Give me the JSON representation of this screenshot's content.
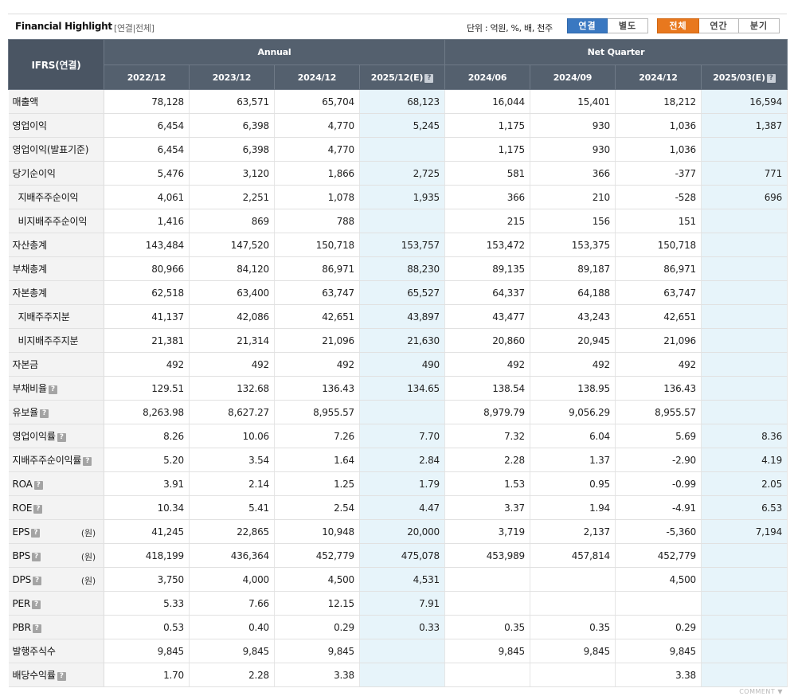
{
  "header": {
    "title": "Financial Highlight",
    "subtitle": "[연결|전체]",
    "unit": "단위 : 억원, %, 배, 천주",
    "scope_buttons": [
      "연결",
      "별도"
    ],
    "period_buttons": [
      "전체",
      "연간",
      "분기"
    ],
    "colors": {
      "active_blue": "#3a78c1",
      "active_orange": "#e8781e"
    }
  },
  "table": {
    "corner": "IFRS(연결)",
    "group_annual": "Annual",
    "group_quarter": "Net Quarter",
    "help_icon": "?",
    "columns": [
      "2022/12",
      "2023/12",
      "2024/12",
      "2025/12(E)",
      "2024/06",
      "2024/09",
      "2024/12",
      "2025/03(E)"
    ],
    "rows": [
      {
        "label": "매출액",
        "values": [
          "78,128",
          "63,571",
          "65,704",
          "68,123",
          "16,044",
          "15,401",
          "18,212",
          "16,594"
        ]
      },
      {
        "label": "영업이익",
        "values": [
          "6,454",
          "6,398",
          "4,770",
          "5,245",
          "1,175",
          "930",
          "1,036",
          "1,387"
        ]
      },
      {
        "label": "영업이익(발표기준)",
        "values": [
          "6,454",
          "6,398",
          "4,770",
          "",
          "1,175",
          "930",
          "1,036",
          ""
        ]
      },
      {
        "label": "당기순이익",
        "values": [
          "5,476",
          "3,120",
          "1,866",
          "2,725",
          "581",
          "366",
          "-377",
          "771"
        ]
      },
      {
        "label": "지배주주순이익",
        "sub": true,
        "values": [
          "4,061",
          "2,251",
          "1,078",
          "1,935",
          "366",
          "210",
          "-528",
          "696"
        ]
      },
      {
        "label": "비지배주주순이익",
        "sub": true,
        "values": [
          "1,416",
          "869",
          "788",
          "",
          "215",
          "156",
          "151",
          ""
        ]
      },
      {
        "label": "자산총계",
        "values": [
          "143,484",
          "147,520",
          "150,718",
          "153,757",
          "153,472",
          "153,375",
          "150,718",
          ""
        ]
      },
      {
        "label": "부채총계",
        "values": [
          "80,966",
          "84,120",
          "86,971",
          "88,230",
          "89,135",
          "89,187",
          "86,971",
          ""
        ]
      },
      {
        "label": "자본총계",
        "values": [
          "62,518",
          "63,400",
          "63,747",
          "65,527",
          "64,337",
          "64,188",
          "63,747",
          ""
        ]
      },
      {
        "label": "지배주주지분",
        "sub": true,
        "values": [
          "41,137",
          "42,086",
          "42,651",
          "43,897",
          "43,477",
          "43,243",
          "42,651",
          ""
        ]
      },
      {
        "label": "비지배주주지분",
        "sub": true,
        "values": [
          "21,381",
          "21,314",
          "21,096",
          "21,630",
          "20,860",
          "20,945",
          "21,096",
          ""
        ]
      },
      {
        "label": "자본금",
        "values": [
          "492",
          "492",
          "492",
          "490",
          "492",
          "492",
          "492",
          ""
        ]
      },
      {
        "label": "부채비율",
        "help": true,
        "values": [
          "129.51",
          "132.68",
          "136.43",
          "134.65",
          "138.54",
          "138.95",
          "136.43",
          ""
        ]
      },
      {
        "label": "유보율",
        "help": true,
        "values": [
          "8,263.98",
          "8,627.27",
          "8,955.57",
          "",
          "8,979.79",
          "9,056.29",
          "8,955.57",
          ""
        ]
      },
      {
        "label": "영업이익률",
        "help": true,
        "values": [
          "8.26",
          "10.06",
          "7.26",
          "7.70",
          "7.32",
          "6.04",
          "5.69",
          "8.36"
        ]
      },
      {
        "label": "지배주주순이익률",
        "help": true,
        "values": [
          "5.20",
          "3.54",
          "1.64",
          "2.84",
          "2.28",
          "1.37",
          "-2.90",
          "4.19"
        ]
      },
      {
        "label": "ROA",
        "help": true,
        "values": [
          "3.91",
          "2.14",
          "1.25",
          "1.79",
          "1.53",
          "0.95",
          "-0.99",
          "2.05"
        ]
      },
      {
        "label": "ROE",
        "help": true,
        "values": [
          "10.34",
          "5.41",
          "2.54",
          "4.47",
          "3.37",
          "1.94",
          "-4.91",
          "6.53"
        ]
      },
      {
        "label": "EPS",
        "help": true,
        "unit": "(원)",
        "values": [
          "41,245",
          "22,865",
          "10,948",
          "20,000",
          "3,719",
          "2,137",
          "-5,360",
          "7,194"
        ]
      },
      {
        "label": "BPS",
        "help": true,
        "unit": "(원)",
        "values": [
          "418,199",
          "436,364",
          "452,779",
          "475,078",
          "453,989",
          "457,814",
          "452,779",
          ""
        ]
      },
      {
        "label": "DPS",
        "help": true,
        "unit": "(원)",
        "values": [
          "3,750",
          "4,000",
          "4,500",
          "4,531",
          "",
          "",
          "4,500",
          ""
        ]
      },
      {
        "label": "PER",
        "help": true,
        "values": [
          "5.33",
          "7.66",
          "12.15",
          "7.91",
          "",
          "",
          "",
          ""
        ]
      },
      {
        "label": "PBR",
        "help": true,
        "values": [
          "0.53",
          "0.40",
          "0.29",
          "0.33",
          "0.35",
          "0.35",
          "0.29",
          ""
        ]
      },
      {
        "label": "발행주식수",
        "values": [
          "9,845",
          "9,845",
          "9,845",
          "",
          "9,845",
          "9,845",
          "9,845",
          ""
        ]
      },
      {
        "label": "배당수익률",
        "help": true,
        "values": [
          "1.70",
          "2.28",
          "3.38",
          "",
          "",
          "",
          "3.38",
          ""
        ]
      }
    ]
  },
  "footer": {
    "comment": "COMMENT ▼"
  }
}
